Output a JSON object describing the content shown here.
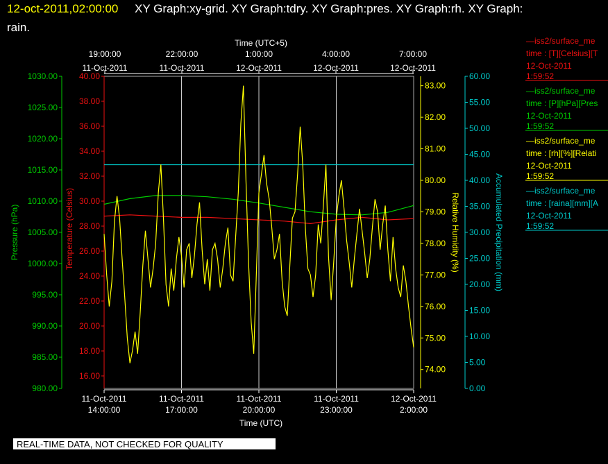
{
  "header": {
    "timestamp": "12-oct-2011,02:00:00",
    "title_line1": "XY Graph:xy-grid.  XY Graph:tdry.  XY Graph:pres.  XY Graph:rh.  XY Graph:",
    "title_line2": "rain."
  },
  "footer": {
    "quality_notice": "REAL-TIME DATA, NOT CHECKED FOR QUALITY"
  },
  "colors": {
    "pressure": "#00cc00",
    "temperature": "#ee1111",
    "humidity": "#ffff00",
    "precip": "#00cccc",
    "grid": "#cccccc"
  },
  "legend": [
    {
      "line1": "—iss2/surface_me",
      "line2": "time : [T][Celsius][T",
      "line3": "12-Oct-2011",
      "line4": "1:59:52",
      "color": "#ee1111"
    },
    {
      "line1": "—iss2/surface_me",
      "line2": "time : [P][hPa][Pres",
      "line3": "12-Oct-2011",
      "line4": "1:59:52",
      "color": "#00cc00"
    },
    {
      "line1": "—iss2/surface_me",
      "line2": "time : [rh][%][Relati",
      "line3": "12-Oct-2011",
      "line4": "1:59:52",
      "color": "#ffff00"
    },
    {
      "line1": "—iss2/surface_me",
      "line2": "time : [raina][mm][A",
      "line3": "12-Oct-2011",
      "line4": "1:59:52",
      "color": "#00cccc"
    }
  ],
  "chart_data": {
    "type": "line",
    "x_top": {
      "title": "Time (UTC+5)",
      "ticks": [
        {
          "time": "19:00:00",
          "date": "11-Oct-2011"
        },
        {
          "time": "22:00:00",
          "date": "11-Oct-2011"
        },
        {
          "time": "1:00:00",
          "date": "12-Oct-2011"
        },
        {
          "time": "4:00:00",
          "date": "12-Oct-2011"
        },
        {
          "time": "7:00:00",
          "date": "12-Oct-2011"
        }
      ]
    },
    "x_bottom": {
      "title": "Time (UTC)",
      "range": [
        "2011-10-11 14:00",
        "2011-10-12 02:00"
      ],
      "ticks": [
        {
          "date": "11-Oct-2011",
          "time": "14:00:00"
        },
        {
          "date": "11-Oct-2011",
          "time": "17:00:00"
        },
        {
          "date": "11-Oct-2011",
          "time": "20:00:00"
        },
        {
          "date": "11-Oct-2011",
          "time": "23:00:00"
        },
        {
          "date": "12-Oct-2011",
          "time": "2:00:00"
        }
      ]
    },
    "y_axes": {
      "pressure": {
        "label": "Pressure (hPa)",
        "range": [
          980,
          1030
        ],
        "ticks": [
          "980.00",
          "985.00",
          "990.00",
          "995.00",
          "1000.00",
          "1005.00",
          "1010.00",
          "1015.00",
          "1020.00",
          "1025.00",
          "1030.00"
        ]
      },
      "temperature": {
        "label": "Temperature (Celsius)",
        "range": [
          15,
          40
        ],
        "ticks": [
          "16.00",
          "18.00",
          "20.00",
          "22.00",
          "24.00",
          "26.00",
          "28.00",
          "30.00",
          "32.00",
          "34.00",
          "36.00",
          "38.00",
          "40.00"
        ]
      },
      "humidity": {
        "label": "Relative Humidity (%)",
        "range": [
          73.4,
          83.3
        ],
        "ticks": [
          "74.00",
          "75.00",
          "76.00",
          "77.00",
          "78.00",
          "79.00",
          "80.00",
          "81.00",
          "82.00",
          "83.00"
        ]
      },
      "precip": {
        "label": "Accumulated Precipitation (mm)",
        "range": [
          0,
          60
        ],
        "ticks": [
          "0.00",
          "5.00",
          "10.00",
          "15.00",
          "20.00",
          "25.00",
          "30.00",
          "35.00",
          "40.00",
          "45.00",
          "50.00",
          "55.00",
          "60.00"
        ]
      }
    },
    "grid": true,
    "series": [
      {
        "name": "pressure",
        "unit": "hPa",
        "t": [
          0,
          1,
          2,
          3,
          4,
          5,
          6,
          7,
          8,
          9,
          10,
          11,
          12
        ],
        "values": [
          1009.5,
          1010.4,
          1010.9,
          1010.9,
          1010.7,
          1010.3,
          1009.7,
          1009.0,
          1008.3,
          1007.9,
          1007.8,
          1008.2,
          1009.3
        ]
      },
      {
        "name": "temperature",
        "unit": "Celsius",
        "t": [
          0,
          1,
          2,
          3,
          4,
          5,
          6,
          7,
          8,
          9,
          10,
          11,
          12
        ],
        "values": [
          28.8,
          28.9,
          28.8,
          28.7,
          28.7,
          28.6,
          28.5,
          28.4,
          28.2,
          28.5,
          28.7,
          28.5,
          28.6
        ]
      },
      {
        "name": "precip",
        "unit": "mm",
        "t": [
          0,
          12
        ],
        "values": [
          43.0,
          43.0
        ]
      },
      {
        "name": "humidity",
        "unit": "%",
        "t": [
          0,
          0.1,
          0.2,
          0.3,
          0.4,
          0.5,
          0.6,
          0.7,
          0.8,
          0.9,
          1.0,
          1.1,
          1.2,
          1.3,
          1.4,
          1.5,
          1.6,
          1.7,
          1.8,
          1.9,
          2.0,
          2.1,
          2.2,
          2.3,
          2.4,
          2.5,
          2.6,
          2.7,
          2.8,
          2.9,
          3.0,
          3.1,
          3.2,
          3.3,
          3.4,
          3.5,
          3.6,
          3.7,
          3.8,
          3.9,
          4.0,
          4.1,
          4.2,
          4.3,
          4.4,
          4.5,
          4.6,
          4.7,
          4.8,
          4.9,
          5.0,
          5.1,
          5.2,
          5.3,
          5.4,
          5.5,
          5.6,
          5.7,
          5.8,
          5.9,
          6.0,
          6.1,
          6.2,
          6.3,
          6.4,
          6.5,
          6.6,
          6.7,
          6.8,
          6.9,
          7.0,
          7.1,
          7.2,
          7.3,
          7.4,
          7.5,
          7.6,
          7.7,
          7.8,
          7.9,
          8.0,
          8.1,
          8.2,
          8.3,
          8.4,
          8.5,
          8.6,
          8.7,
          8.8,
          8.9,
          9.0,
          9.1,
          9.2,
          9.3,
          9.4,
          9.5,
          9.6,
          9.7,
          9.8,
          9.9,
          10.0,
          10.1,
          10.2,
          10.3,
          10.4,
          10.5,
          10.6,
          10.7,
          10.8,
          10.9,
          11.0,
          11.1,
          11.2,
          11.3,
          11.4,
          11.5,
          11.6,
          11.7,
          11.8,
          11.9,
          12.0
        ],
        "values": [
          78.3,
          77.0,
          76.0,
          76.8,
          78.7,
          79.5,
          78.8,
          77.5,
          76.3,
          75.0,
          74.2,
          74.6,
          75.2,
          74.5,
          75.8,
          77.3,
          78.4,
          77.5,
          76.6,
          77.2,
          78.0,
          79.6,
          80.5,
          78.8,
          76.7,
          76.0,
          77.2,
          76.5,
          77.5,
          78.2,
          77.6,
          76.6,
          77.8,
          78.0,
          76.9,
          77.6,
          78.6,
          79.3,
          77.8,
          76.7,
          77.5,
          76.5,
          77.8,
          78.0,
          77.5,
          76.6,
          77.2,
          78.0,
          78.5,
          77.0,
          76.8,
          78.2,
          79.6,
          81.8,
          83.0,
          80.0,
          77.4,
          75.5,
          74.5,
          77.0,
          79.6,
          80.2,
          80.8,
          79.9,
          79.4,
          78.5,
          77.5,
          77.8,
          78.3,
          76.8,
          76.0,
          75.7,
          77.3,
          78.8,
          79.0,
          80.2,
          81.7,
          80.5,
          78.5,
          77.2,
          77.0,
          76.3,
          77.0,
          78.6,
          78.0,
          79.2,
          80.5,
          77.6,
          76.2,
          77.4,
          78.8,
          79.5,
          80.0,
          79.1,
          78.1,
          77.4,
          76.6,
          77.5,
          78.3,
          79.1,
          78.4,
          77.7,
          76.9,
          77.5,
          78.5,
          79.4,
          79.0,
          77.8,
          78.6,
          79.2,
          77.8,
          76.8,
          78.2,
          77.2,
          76.6,
          76.3,
          77.3,
          76.8,
          76.0,
          75.3,
          74.7
        ]
      }
    ]
  }
}
